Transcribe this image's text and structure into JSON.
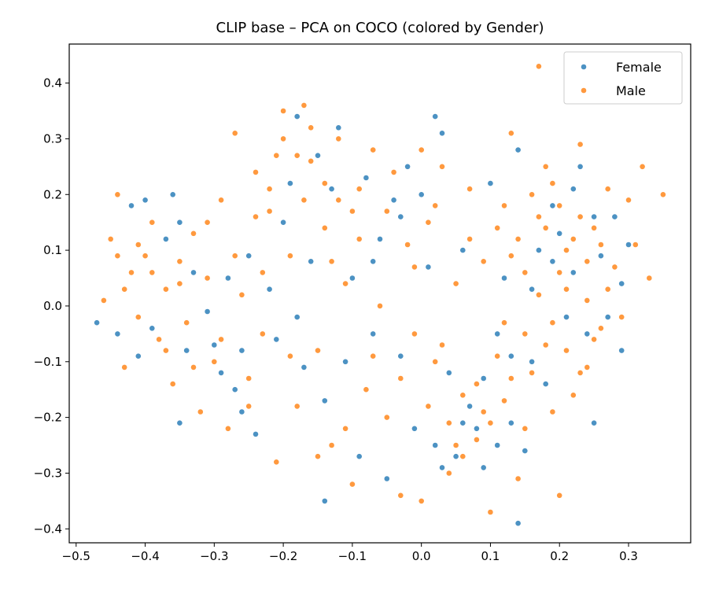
{
  "chart_data": {
    "type": "scatter",
    "title": "CLIP base – PCA on COCO (colored by Gender)",
    "xlabel": "",
    "ylabel": "",
    "xlim": [
      -0.51,
      0.39
    ],
    "ylim": [
      -0.425,
      0.47
    ],
    "xticks": [
      -0.5,
      -0.4,
      -0.3,
      -0.2,
      -0.1,
      0.0,
      0.1,
      0.2,
      0.3
    ],
    "xtick_labels": [
      "−0.5",
      "−0.4",
      "−0.3",
      "−0.2",
      "−0.1",
      "0.0",
      "0.1",
      "0.2",
      "0.3"
    ],
    "yticks": [
      -0.4,
      -0.3,
      -0.2,
      -0.1,
      0.0,
      0.1,
      0.2,
      0.3,
      0.4
    ],
    "ytick_labels": [
      "−0.4",
      "−0.3",
      "−0.2",
      "−0.1",
      "0.0",
      "0.1",
      "0.2",
      "0.3",
      "0.4"
    ],
    "grid": false,
    "legend_position": "top-right",
    "series": [
      {
        "name": "Female",
        "color": "#1f77b4",
        "points": [
          [
            -0.47,
            -0.03
          ],
          [
            -0.44,
            -0.05
          ],
          [
            -0.42,
            0.18
          ],
          [
            -0.41,
            -0.09
          ],
          [
            -0.4,
            0.19
          ],
          [
            -0.39,
            -0.04
          ],
          [
            -0.37,
            0.12
          ],
          [
            -0.36,
            0.2
          ],
          [
            -0.35,
            0.15
          ],
          [
            -0.34,
            -0.08
          ],
          [
            -0.35,
            -0.21
          ],
          [
            -0.33,
            0.06
          ],
          [
            -0.31,
            -0.01
          ],
          [
            -0.3,
            -0.07
          ],
          [
            -0.29,
            -0.12
          ],
          [
            -0.28,
            0.05
          ],
          [
            -0.27,
            -0.15
          ],
          [
            -0.26,
            -0.19
          ],
          [
            -0.25,
            0.09
          ],
          [
            -0.24,
            -0.23
          ],
          [
            -0.22,
            0.03
          ],
          [
            -0.21,
            -0.06
          ],
          [
            -0.2,
            0.15
          ],
          [
            -0.19,
            0.22
          ],
          [
            -0.18,
            0.34
          ],
          [
            -0.17,
            -0.11
          ],
          [
            -0.16,
            0.08
          ],
          [
            -0.15,
            0.27
          ],
          [
            -0.14,
            -0.17
          ],
          [
            -0.14,
            -0.35
          ],
          [
            -0.13,
            0.21
          ],
          [
            -0.12,
            0.32
          ],
          [
            -0.11,
            -0.1
          ],
          [
            -0.1,
            0.05
          ],
          [
            -0.09,
            -0.27
          ],
          [
            -0.08,
            0.23
          ],
          [
            -0.07,
            -0.05
          ],
          [
            -0.06,
            0.12
          ],
          [
            -0.05,
            -0.31
          ],
          [
            -0.04,
            0.19
          ],
          [
            -0.03,
            -0.09
          ],
          [
            -0.02,
            0.25
          ],
          [
            -0.01,
            -0.22
          ],
          [
            0.0,
            0.2
          ],
          [
            0.01,
            0.07
          ],
          [
            0.02,
            -0.25
          ],
          [
            0.03,
            0.31
          ],
          [
            0.02,
            0.34
          ],
          [
            0.04,
            -0.12
          ],
          [
            0.05,
            -0.27
          ],
          [
            0.06,
            0.1
          ],
          [
            0.07,
            -0.18
          ],
          [
            0.08,
            -0.22
          ],
          [
            0.09,
            -0.29
          ],
          [
            0.1,
            0.22
          ],
          [
            0.11,
            -0.05
          ],
          [
            0.12,
            0.05
          ],
          [
            0.13,
            -0.09
          ],
          [
            0.14,
            0.28
          ],
          [
            0.14,
            -0.39
          ],
          [
            0.15,
            -0.26
          ],
          [
            0.16,
            0.03
          ],
          [
            0.17,
            0.1
          ],
          [
            0.18,
            -0.14
          ],
          [
            0.19,
            0.18
          ],
          [
            0.2,
            0.13
          ],
          [
            0.21,
            -0.02
          ],
          [
            0.22,
            0.06
          ],
          [
            0.23,
            0.25
          ],
          [
            0.24,
            -0.05
          ],
          [
            0.25,
            0.16
          ],
          [
            0.25,
            -0.21
          ],
          [
            0.26,
            0.09
          ],
          [
            0.27,
            -0.02
          ],
          [
            0.28,
            0.16
          ],
          [
            0.29,
            0.04
          ],
          [
            0.29,
            -0.08
          ],
          [
            0.3,
            0.11
          ],
          [
            0.22,
            0.21
          ],
          [
            0.19,
            0.08
          ],
          [
            0.16,
            -0.1
          ],
          [
            0.13,
            -0.21
          ],
          [
            0.11,
            -0.25
          ],
          [
            0.09,
            -0.13
          ],
          [
            0.06,
            -0.21
          ],
          [
            0.03,
            -0.29
          ],
          [
            -0.03,
            0.16
          ],
          [
            -0.07,
            0.08
          ],
          [
            -0.18,
            -0.02
          ],
          [
            -0.26,
            -0.08
          ]
        ]
      },
      {
        "name": "Male",
        "color": "#ff7f0e",
        "points": [
          [
            -0.46,
            0.01
          ],
          [
            -0.45,
            0.12
          ],
          [
            -0.44,
            0.2
          ],
          [
            -0.43,
            -0.11
          ],
          [
            -0.42,
            0.06
          ],
          [
            -0.41,
            -0.02
          ],
          [
            -0.4,
            0.09
          ],
          [
            -0.39,
            0.15
          ],
          [
            -0.38,
            -0.06
          ],
          [
            -0.37,
            0.03
          ],
          [
            -0.36,
            -0.14
          ],
          [
            -0.35,
            0.08
          ],
          [
            -0.34,
            -0.03
          ],
          [
            -0.33,
            0.13
          ],
          [
            -0.32,
            -0.19
          ],
          [
            -0.31,
            0.05
          ],
          [
            -0.3,
            -0.1
          ],
          [
            -0.29,
            0.19
          ],
          [
            -0.28,
            -0.22
          ],
          [
            -0.27,
            0.31
          ],
          [
            -0.26,
            0.02
          ],
          [
            -0.25,
            -0.13
          ],
          [
            -0.24,
            0.24
          ],
          [
            -0.23,
            -0.05
          ],
          [
            -0.22,
            0.17
          ],
          [
            -0.21,
            -0.28
          ],
          [
            -0.2,
            0.35
          ],
          [
            -0.19,
            0.09
          ],
          [
            -0.18,
            -0.18
          ],
          [
            -0.17,
            0.36
          ],
          [
            -0.16,
            0.26
          ],
          [
            -0.15,
            -0.08
          ],
          [
            -0.14,
            0.14
          ],
          [
            -0.13,
            -0.25
          ],
          [
            -0.12,
            0.3
          ],
          [
            -0.11,
            0.04
          ],
          [
            -0.1,
            -0.32
          ],
          [
            -0.09,
            0.21
          ],
          [
            -0.08,
            -0.15
          ],
          [
            -0.07,
            0.28
          ],
          [
            -0.06,
            0.0
          ],
          [
            -0.05,
            -0.2
          ],
          [
            -0.04,
            0.24
          ],
          [
            -0.03,
            -0.34
          ],
          [
            -0.02,
            0.11
          ],
          [
            -0.01,
            -0.05
          ],
          [
            0.0,
            -0.35
          ],
          [
            0.01,
            0.15
          ],
          [
            0.02,
            -0.1
          ],
          [
            0.03,
            0.25
          ],
          [
            0.04,
            -0.3
          ],
          [
            0.05,
            0.04
          ],
          [
            0.06,
            -0.16
          ],
          [
            0.07,
            0.21
          ],
          [
            0.08,
            -0.24
          ],
          [
            0.09,
            0.08
          ],
          [
            0.1,
            -0.37
          ],
          [
            0.11,
            0.14
          ],
          [
            0.12,
            -0.03
          ],
          [
            0.13,
            0.31
          ],
          [
            0.14,
            -0.31
          ],
          [
            0.15,
            0.06
          ],
          [
            0.16,
            -0.12
          ],
          [
            0.17,
            0.43
          ],
          [
            0.18,
            -0.07
          ],
          [
            0.19,
            0.22
          ],
          [
            0.2,
            -0.34
          ],
          [
            0.21,
            0.1
          ],
          [
            0.22,
            -0.16
          ],
          [
            0.23,
            0.29
          ],
          [
            0.24,
            0.01
          ],
          [
            0.25,
            0.14
          ],
          [
            0.26,
            -0.04
          ],
          [
            0.27,
            0.21
          ],
          [
            0.28,
            0.07
          ],
          [
            0.29,
            -0.02
          ],
          [
            0.3,
            0.19
          ],
          [
            0.31,
            0.11
          ],
          [
            0.32,
            0.25
          ],
          [
            0.33,
            0.05
          ],
          [
            0.35,
            0.2
          ],
          [
            0.24,
            -0.11
          ],
          [
            0.21,
            0.03
          ],
          [
            0.19,
            -0.19
          ],
          [
            0.17,
            0.16
          ],
          [
            0.15,
            -0.22
          ],
          [
            0.13,
            0.09
          ],
          [
            0.11,
            -0.09
          ],
          [
            0.09,
            -0.19
          ],
          [
            0.07,
            0.12
          ],
          [
            0.05,
            -0.25
          ],
          [
            0.03,
            -0.07
          ],
          [
            0.01,
            -0.18
          ],
          [
            -0.01,
            0.07
          ],
          [
            -0.03,
            -0.13
          ],
          [
            -0.05,
            0.17
          ],
          [
            -0.07,
            -0.09
          ],
          [
            -0.09,
            0.12
          ],
          [
            -0.11,
            -0.22
          ],
          [
            -0.13,
            0.08
          ],
          [
            -0.15,
            -0.27
          ],
          [
            -0.17,
            0.19
          ],
          [
            -0.19,
            -0.09
          ],
          [
            -0.21,
            0.27
          ],
          [
            -0.23,
            0.06
          ],
          [
            -0.25,
            -0.18
          ],
          [
            -0.27,
            0.09
          ],
          [
            -0.29,
            -0.06
          ],
          [
            -0.31,
            0.15
          ],
          [
            -0.33,
            -0.11
          ],
          [
            -0.35,
            0.04
          ],
          [
            -0.37,
            -0.08
          ],
          [
            -0.39,
            0.06
          ],
          [
            -0.41,
            0.11
          ],
          [
            -0.43,
            0.03
          ],
          [
            -0.44,
            0.09
          ],
          [
            0.18,
            0.14
          ],
          [
            0.2,
            0.06
          ],
          [
            0.22,
            0.12
          ],
          [
            0.24,
            0.08
          ],
          [
            0.17,
            0.02
          ],
          [
            0.19,
            -0.03
          ],
          [
            0.21,
            -0.08
          ],
          [
            0.15,
            -0.05
          ],
          [
            0.13,
            -0.13
          ],
          [
            0.12,
            -0.17
          ],
          [
            0.1,
            -0.21
          ],
          [
            0.08,
            -0.14
          ],
          [
            0.06,
            -0.27
          ],
          [
            0.04,
            -0.21
          ],
          [
            0.16,
            0.2
          ],
          [
            0.18,
            0.25
          ],
          [
            0.2,
            0.18
          ],
          [
            0.23,
            0.16
          ],
          [
            0.26,
            0.11
          ],
          [
            0.27,
            0.03
          ],
          [
            0.25,
            -0.06
          ],
          [
            0.23,
            -0.12
          ],
          [
            0.14,
            0.12
          ],
          [
            0.12,
            0.18
          ],
          [
            -0.2,
            0.3
          ],
          [
            -0.18,
            0.27
          ],
          [
            -0.16,
            0.32
          ],
          [
            -0.14,
            0.22
          ],
          [
            -0.12,
            0.19
          ],
          [
            -0.22,
            0.21
          ],
          [
            -0.24,
            0.16
          ],
          [
            -0.1,
            0.17
          ],
          [
            0.0,
            0.28
          ],
          [
            0.02,
            0.18
          ]
        ]
      }
    ]
  }
}
